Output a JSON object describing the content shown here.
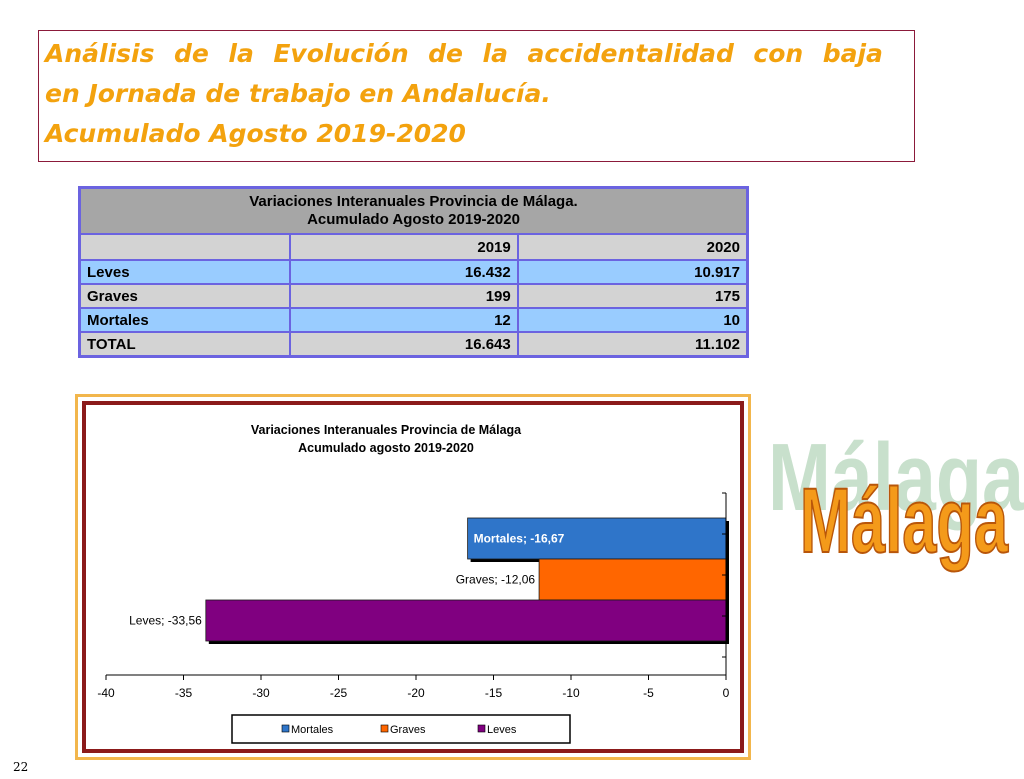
{
  "title": {
    "line1_words": [
      "Análisis",
      "de",
      "la",
      "Evolución",
      "de",
      "la",
      "accidentalidad",
      "con",
      "baja"
    ],
    "line2": "en Jornada de trabajo en Andalucía.",
    "line3": "Acumulado  Agosto 2019-2020"
  },
  "table": {
    "title_line1": "Variaciones Interanuales Provincia de Málaga.",
    "title_line2": "Acumulado Agosto 2019-2020",
    "columns": [
      "",
      "2019",
      "2020"
    ],
    "rows": [
      {
        "label": "Leves",
        "v2019": "16.432",
        "v2020": "10.917"
      },
      {
        "label": "Graves",
        "v2019": "199",
        "v2020": "175"
      },
      {
        "label": "Mortales",
        "v2019": "12",
        "v2020": "10"
      },
      {
        "label": "TOTAL",
        "v2019": "16.643",
        "v2020": "11.102"
      }
    ]
  },
  "chart_data": {
    "type": "bar",
    "orientation": "horizontal",
    "title": "Variaciones Interanuales Provincia de Málaga",
    "subtitle": "Acumulado agosto 2019-2020",
    "categories": [
      "Mortales",
      "Graves",
      "Leves"
    ],
    "values": [
      -16.67,
      -12.06,
      -33.56
    ],
    "data_labels": [
      "Mortales; -16,67",
      "Graves; -12,06",
      "Leves; -33,56"
    ],
    "colors": [
      "#2f75c9",
      "#ff6600",
      "#800080"
    ],
    "xlim": [
      -40,
      0
    ],
    "xticks": [
      -40,
      -35,
      -30,
      -25,
      -20,
      -15,
      -10,
      -5,
      0
    ],
    "grid": false,
    "legend": {
      "placement": "bottom",
      "entries": [
        {
          "name": "Mortales",
          "color": "#2f75c9"
        },
        {
          "name": "Graves",
          "color": "#ff6600"
        },
        {
          "name": "Leves",
          "color": "#800080"
        }
      ]
    }
  },
  "logo": {
    "text": "Málaga",
    "shadow_color": "#c8e0cc",
    "fill_color": "#f49a1a"
  },
  "page_number": "22"
}
